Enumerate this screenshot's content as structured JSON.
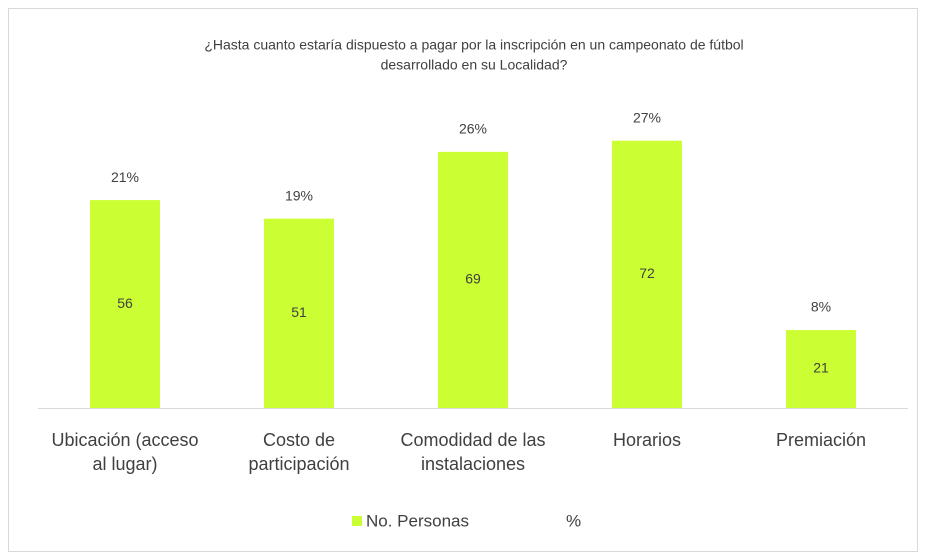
{
  "chart_data": {
    "type": "bar",
    "title": [
      "¿Hasta cuanto estaría dispuesto a pagar por la inscripción en un campeonato de fútbol",
      "desarrollado en su Localidad?"
    ],
    "categories": [
      "Ubicación (acceso al lugar)",
      "Costo de participación",
      "Comodidad de las instalaciones",
      "Horarios",
      "Premiación"
    ],
    "series": [
      {
        "name": "No. Personas",
        "color": "#ccff33",
        "values": [
          56,
          51,
          69,
          72,
          21
        ]
      },
      {
        "name": "%",
        "color": "none",
        "values": [
          21,
          19,
          26,
          27,
          8
        ],
        "value_labels": [
          "21%",
          "19%",
          "26%",
          "27%",
          "8%"
        ]
      }
    ],
    "ylim": [
      0,
      80
    ],
    "grid": false
  }
}
